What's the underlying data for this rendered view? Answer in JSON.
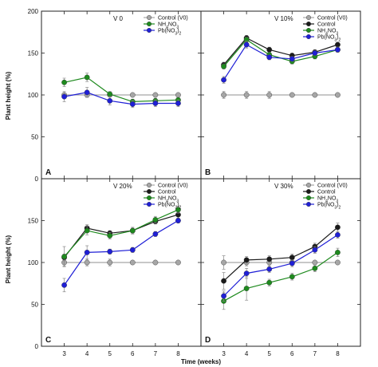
{
  "figure": {
    "xlabel": "Time (weeks)",
    "ylabel": "Plant height (%)",
    "y_ticks": [
      "0",
      "50",
      "100",
      "150",
      "200"
    ],
    "x_ticks": [
      "3",
      "4",
      "5",
      "6",
      "7",
      "8"
    ]
  },
  "colors": {
    "Control (V0)": "#a6a6a6",
    "Control": "#1a1a1a",
    "NH4NO3": "#1e8a1e",
    "Pb(NO3)2": "#1f1fd6"
  },
  "chart_data": [
    {
      "type": "line",
      "panel": "A",
      "title": "V 0",
      "legend": "top-right",
      "x": [
        3,
        4,
        5,
        6,
        7,
        8
      ],
      "ylim": [
        0,
        200
      ],
      "series": [
        {
          "name": "Control (V0)",
          "label_main": "Control (V0)",
          "label_sub": "",
          "label_tail": "",
          "values": [
            100,
            100,
            100,
            100,
            100,
            100
          ],
          "errors": [
            2,
            2,
            2,
            2,
            2,
            2
          ]
        },
        {
          "name": "NH4NO3",
          "label_main": "NH",
          "label_sub": "4",
          "label_tail": "NO",
          "label_sub2": "3",
          "values": [
            115,
            121,
            101,
            92,
            93,
            94
          ],
          "errors": [
            5,
            5,
            3,
            3,
            3,
            3
          ]
        },
        {
          "name": "Pb(NO3)2",
          "label_main": "Pb(NO",
          "label_sub": "3",
          "label_tail": ")",
          "label_sub2": "2",
          "values": [
            98,
            103,
            93,
            89,
            90,
            90
          ],
          "errors": [
            6,
            6,
            5,
            4,
            4,
            4
          ]
        }
      ]
    },
    {
      "type": "line",
      "panel": "B",
      "title": "V 10%",
      "legend": "top-right",
      "x": [
        3,
        4,
        5,
        6,
        7,
        8
      ],
      "ylim": [
        0,
        200
      ],
      "series": [
        {
          "name": "Control (V0)",
          "label_main": "Control (V0)",
          "label_sub": "",
          "label_tail": "",
          "values": [
            100,
            100,
            100,
            100,
            100,
            100
          ],
          "errors": [
            4,
            4,
            4,
            2,
            2,
            2
          ]
        },
        {
          "name": "Control",
          "label_main": "Control",
          "label_sub": "",
          "label_tail": "",
          "values": [
            136,
            168,
            154,
            147,
            151,
            160
          ],
          "errors": [
            3,
            3,
            3,
            3,
            3,
            3
          ]
        },
        {
          "name": "NH4NO3",
          "label_main": "NH",
          "label_sub": "4",
          "label_tail": "NO",
          "label_sub2": "3",
          "values": [
            134,
            166,
            148,
            140,
            146,
            154
          ],
          "errors": [
            3,
            3,
            3,
            3,
            3,
            3
          ]
        },
        {
          "name": "Pb(NO3)2",
          "label_main": "Pb(NO",
          "label_sub": "3",
          "label_tail": ")",
          "label_sub2": "2",
          "values": [
            118,
            160,
            145,
            143,
            150,
            154
          ],
          "errors": [
            4,
            4,
            3,
            3,
            3,
            3
          ]
        }
      ]
    },
    {
      "type": "line",
      "panel": "C",
      "title": "V 20%",
      "legend": "top-right",
      "x": [
        3,
        4,
        5,
        6,
        7,
        8
      ],
      "ylim": [
        0,
        200
      ],
      "series": [
        {
          "name": "Control (V0)",
          "label_main": "Control (V0)",
          "label_sub": "",
          "label_tail": "",
          "values": [
            100,
            100,
            100,
            100,
            100,
            100
          ],
          "errors": [
            4,
            4,
            4,
            2,
            2,
            2
          ]
        },
        {
          "name": "Control",
          "label_main": "Control",
          "label_sub": "",
          "label_tail": "",
          "values": [
            106,
            141,
            135,
            138,
            149,
            157
          ],
          "errors": [
            4,
            4,
            3,
            3,
            3,
            4
          ]
        },
        {
          "name": "NH4NO3",
          "label_main": "NH",
          "label_sub": "4",
          "label_tail": "NO",
          "label_sub2": "3",
          "values": [
            107,
            138,
            132,
            138,
            151,
            163
          ],
          "errors": [
            12,
            5,
            4,
            4,
            4,
            4
          ]
        },
        {
          "name": "Pb(NO3)2",
          "label_main": "Pb(NO",
          "label_sub": "3",
          "label_tail": ")",
          "label_sub2": "2",
          "values": [
            73,
            112,
            113,
            115,
            134,
            150
          ],
          "errors": [
            8,
            8,
            3,
            3,
            3,
            3
          ]
        }
      ]
    },
    {
      "type": "line",
      "panel": "D",
      "title": "V 30%",
      "legend": "top-right",
      "x": [
        3,
        4,
        5,
        6,
        7,
        8
      ],
      "ylim": [
        0,
        200
      ],
      "series": [
        {
          "name": "Control (V0)",
          "label_main": "Control (V0)",
          "label_sub": "",
          "label_tail": "",
          "values": [
            100,
            100,
            100,
            100,
            100,
            100
          ],
          "errors": [
            8,
            4,
            4,
            2,
            2,
            2
          ]
        },
        {
          "name": "Control",
          "label_main": "Control",
          "label_sub": "",
          "label_tail": "",
          "values": [
            78,
            103,
            104,
            106,
            119,
            142
          ],
          "errors": [
            10,
            4,
            4,
            4,
            4,
            5
          ]
        },
        {
          "name": "NH4NO3",
          "label_main": "NH",
          "label_sub": "4",
          "label_tail": "NO",
          "label_sub2": "3",
          "values": [
            54,
            69,
            76,
            83,
            93,
            112
          ],
          "errors": [
            10,
            14,
            4,
            4,
            4,
            5
          ]
        },
        {
          "name": "Pb(NO3)2",
          "label_main": "Pb(NO",
          "label_sub": "3",
          "label_tail": ")",
          "label_sub2": "2",
          "values": [
            60,
            87,
            92,
            99,
            115,
            133
          ],
          "errors": [
            6,
            6,
            4,
            4,
            4,
            4
          ]
        }
      ]
    }
  ]
}
